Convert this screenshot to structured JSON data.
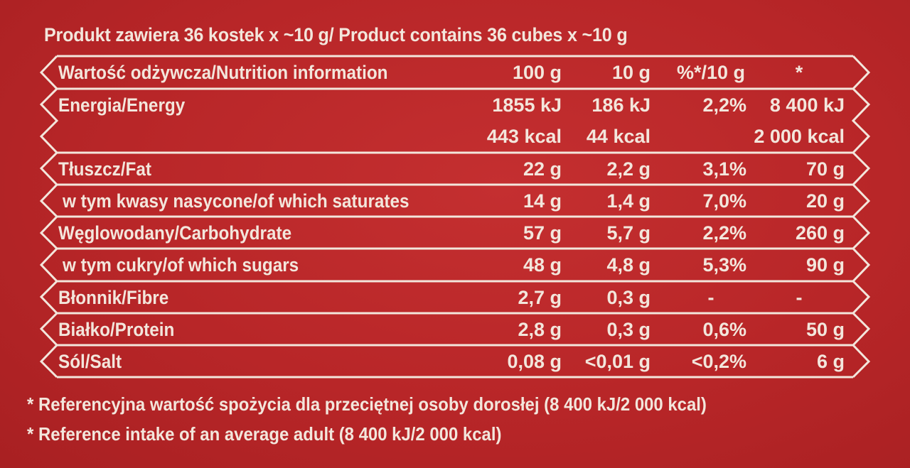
{
  "header": "Produkt zawiera 36 kostek x ~10 g/ Product contains 36 cubes x ~10 g",
  "table": {
    "columns": [
      "Wartość odżywcza/Nutrition information",
      "100 g",
      "10 g",
      "%*/10 g",
      "*"
    ],
    "energy": {
      "label": "Energia/Energy",
      "kj": [
        "1855 kJ",
        "186 kJ",
        "2,2%",
        "8 400 kJ"
      ],
      "kcal": [
        "443 kcal",
        "44 kcal",
        "",
        "2 000 kcal"
      ]
    },
    "rows": [
      {
        "label": "Tłuszcz/Fat",
        "v100": "22 g",
        "v10": "2,2 g",
        "pct": "3,1%",
        "ri": "70 g"
      },
      {
        "label": "w tym kwasy nasycone/of which saturates",
        "v100": "14 g",
        "v10": "1,4 g",
        "pct": "7,0%",
        "ri": "20 g"
      },
      {
        "label": "Węglowodany/Carbohydrate",
        "v100": "57 g",
        "v10": "5,7 g",
        "pct": "2,2%",
        "ri": "260 g"
      },
      {
        "label": "w tym cukry/of which sugars",
        "v100": "48 g",
        "v10": "4,8 g",
        "pct": "5,3%",
        "ri": "90 g"
      },
      {
        "label": "Błonnik/Fibre",
        "v100": "2,7 g",
        "v10": "0,3 g",
        "pct": "-",
        "ri": "-"
      },
      {
        "label": "Białko/Protein",
        "v100": "2,8 g",
        "v10": "0,3 g",
        "pct": "0,6%",
        "ri": "50 g"
      },
      {
        "label": "Sól/Salt",
        "v100": "0,08 g",
        "v10": "<0,01 g",
        "pct": "<0,2%",
        "ri": "6 g"
      }
    ]
  },
  "footnotes": [
    "* Referencyjna wartość spożycia dla przeciętnej osoby dorosłej (8 400 kJ/2 000 kcal)",
    "* Reference intake of an average adult (8 400 kJ/2 000 kcal)"
  ],
  "colors": {
    "background": "#b82628",
    "text": "#f3e6dc"
  }
}
